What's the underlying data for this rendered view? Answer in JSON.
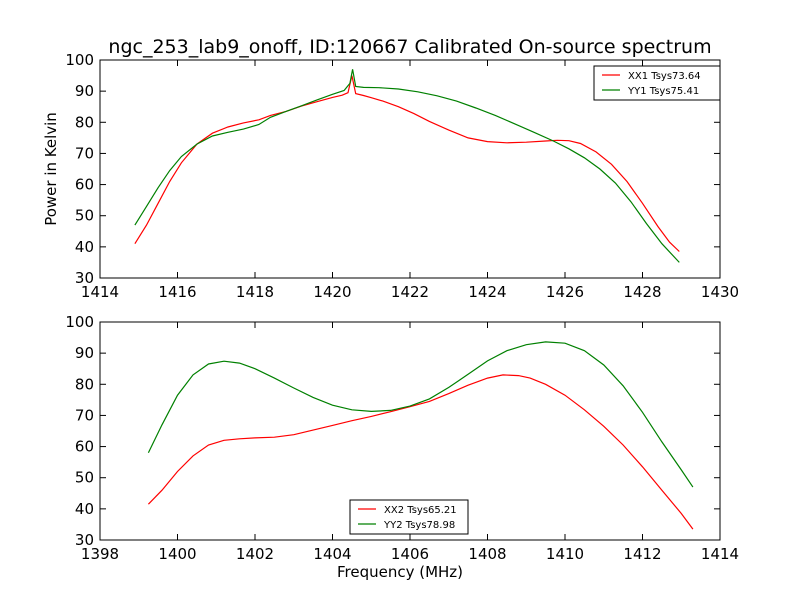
{
  "figure_title": "ngc_253_lab9_onoff, ID:120667 Calibrated On-source spectrum",
  "chart_data": [
    {
      "type": "line",
      "title": "ngc_253_lab9_onoff, ID:120667 Calibrated On-source spectrum",
      "xlabel": "",
      "ylabel": "Power in Kelvin",
      "xlim": [
        1414,
        1430
      ],
      "ylim": [
        30,
        100
      ],
      "xticks": [
        1414,
        1416,
        1418,
        1420,
        1422,
        1424,
        1426,
        1428,
        1430
      ],
      "yticks": [
        30,
        40,
        50,
        60,
        70,
        80,
        90,
        100
      ],
      "grid": false,
      "legend_position": "top-right",
      "series": [
        {
          "name": "XX1 Tsys73.64",
          "color": "#ff0000",
          "x": [
            1414.9,
            1415.2,
            1415.5,
            1415.8,
            1416.1,
            1416.5,
            1416.9,
            1417.3,
            1417.7,
            1418.1,
            1418.4,
            1418.8,
            1419.2,
            1419.6,
            1420.0,
            1420.25,
            1420.4,
            1420.5,
            1420.6,
            1420.8,
            1421.0,
            1421.3,
            1421.7,
            1422.1,
            1422.5,
            1423.0,
            1423.5,
            1424.0,
            1424.5,
            1425.0,
            1425.5,
            1425.8,
            1426.1,
            1426.4,
            1426.8,
            1427.2,
            1427.6,
            1428.0,
            1428.4,
            1428.7,
            1428.95
          ],
          "y": [
            41,
            47,
            54,
            61,
            67,
            73,
            76.5,
            78.5,
            79.8,
            80.8,
            82.2,
            83.5,
            85.2,
            86.6,
            88,
            88.7,
            89.5,
            95,
            89.2,
            88.6,
            87.9,
            86.8,
            85,
            82.8,
            80.3,
            77.5,
            75,
            73.8,
            73.4,
            73.6,
            74,
            74.2,
            74.1,
            73.2,
            70.5,
            66.5,
            61,
            54,
            46.5,
            41.5,
            38.5
          ]
        },
        {
          "name": "YY1 Tsys75.41",
          "color": "#008000",
          "x": [
            1414.9,
            1415.2,
            1415.5,
            1415.8,
            1416.1,
            1416.5,
            1416.9,
            1417.3,
            1417.7,
            1418.1,
            1418.4,
            1418.8,
            1419.2,
            1419.6,
            1420.0,
            1420.3,
            1420.45,
            1420.52,
            1420.6,
            1420.8,
            1421.2,
            1421.7,
            1422.2,
            1422.7,
            1423.2,
            1423.7,
            1424.2,
            1424.7,
            1425.2,
            1425.7,
            1426.1,
            1426.5,
            1426.9,
            1427.3,
            1427.7,
            1428.1,
            1428.5,
            1428.95
          ],
          "y": [
            47,
            53,
            59,
            64.5,
            69,
            73,
            75.6,
            76.8,
            77.8,
            79.3,
            81.6,
            83.5,
            85.3,
            87.2,
            89,
            90.2,
            92.5,
            97,
            91.5,
            91.2,
            91.1,
            90.7,
            89.8,
            88.5,
            86.8,
            84.6,
            82.2,
            79.5,
            76.8,
            74,
            71.5,
            68.6,
            65,
            60.5,
            54.5,
            47.5,
            41,
            35
          ]
        }
      ]
    },
    {
      "type": "line",
      "xlabel": "Frequency (MHz)",
      "ylabel": "",
      "xlim": [
        1398,
        1414
      ],
      "ylim": [
        30,
        100
      ],
      "xticks": [
        1398,
        1400,
        1402,
        1404,
        1406,
        1408,
        1410,
        1412,
        1414
      ],
      "yticks": [
        30,
        40,
        50,
        60,
        70,
        80,
        90,
        100
      ],
      "grid": false,
      "legend_position": "bottom-center",
      "series": [
        {
          "name": "XX2 Tsys65.21",
          "color": "#ff0000",
          "x": [
            1399.25,
            1399.6,
            1400.0,
            1400.4,
            1400.8,
            1401.2,
            1401.6,
            1402.0,
            1402.5,
            1403.0,
            1403.5,
            1404.0,
            1404.5,
            1405.0,
            1405.5,
            1406.0,
            1406.5,
            1407.0,
            1407.5,
            1408.0,
            1408.4,
            1408.8,
            1409.1,
            1409.5,
            1410.0,
            1410.5,
            1411.0,
            1411.5,
            1412.0,
            1412.5,
            1413.0,
            1413.3
          ],
          "y": [
            41.5,
            46,
            52,
            57,
            60.5,
            62,
            62.5,
            62.8,
            63,
            63.8,
            65.3,
            66.8,
            68.3,
            69.7,
            71.2,
            72.8,
            74.5,
            77,
            79.7,
            82,
            83,
            82.8,
            82,
            80,
            76.5,
            71.8,
            66.5,
            60.5,
            53.5,
            46,
            38.5,
            33.5
          ]
        },
        {
          "name": "YY2 Tsys78.98",
          "color": "#008000",
          "x": [
            1399.25,
            1399.6,
            1400.0,
            1400.4,
            1400.8,
            1401.2,
            1401.6,
            1402.0,
            1402.5,
            1403.0,
            1403.5,
            1404.0,
            1404.5,
            1405.0,
            1405.5,
            1406.0,
            1406.5,
            1407.0,
            1407.5,
            1408.0,
            1408.5,
            1409.0,
            1409.5,
            1410.0,
            1410.5,
            1411.0,
            1411.5,
            1412.0,
            1412.5,
            1413.0,
            1413.3
          ],
          "y": [
            58,
            67,
            76.5,
            83,
            86.5,
            87.4,
            86.8,
            85,
            82,
            78.8,
            75.8,
            73.3,
            71.8,
            71.3,
            71.6,
            73,
            75.3,
            79,
            83.2,
            87.5,
            90.8,
            92.7,
            93.6,
            93.2,
            90.8,
            86.2,
            79.5,
            71,
            61.5,
            52.5,
            47
          ]
        }
      ]
    }
  ]
}
